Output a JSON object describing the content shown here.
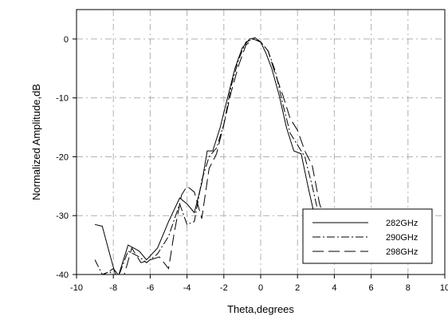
{
  "chart_data": {
    "type": "line",
    "title": "",
    "xlabel": "Theta,degrees",
    "ylabel": "Normalized Amplitude,dB",
    "xlim": [
      -10,
      10
    ],
    "ylim": [
      -40,
      5
    ],
    "xticks": [
      "-10",
      "-8",
      "-6",
      "-4",
      "-2",
      "0",
      "2",
      "4",
      "6",
      "8",
      "10"
    ],
    "yticks": [
      "0",
      "-10",
      "-20",
      "-30",
      "-40"
    ],
    "grid": true,
    "legend_position": "bottom-right",
    "series": [
      {
        "name": "282GHz",
        "dash": "solid",
        "color": "#000000",
        "x": [
          -9,
          -8.6,
          -8.2,
          -7.8,
          -7.2,
          -6.6,
          -6.2,
          -5.6,
          -5,
          -4.4,
          -4,
          -3.6,
          -3.2,
          -2.9,
          -2.6,
          -2.2,
          -1.8,
          -1.4,
          -1,
          -0.6,
          -0.3,
          0,
          0.3,
          0.6,
          1,
          1.4,
          1.8,
          2.2,
          2.6,
          3,
          3.4,
          3.8,
          4.2,
          4.6,
          5
        ],
        "y": [
          -31.5,
          -31.8,
          -36.5,
          -41,
          -35,
          -36,
          -37.5,
          -35.5,
          -31,
          -27,
          -28,
          -29.5,
          -24.5,
          -19,
          -19,
          -15,
          -10,
          -5,
          -1.5,
          0,
          0.2,
          -0.5,
          -2.5,
          -5,
          -9.5,
          -15,
          -19,
          -19.5,
          -25.5,
          -31,
          -33,
          -34.5,
          -35,
          -37,
          -37.5
        ]
      },
      {
        "name": "290GHz",
        "dash": "dashdot",
        "color": "#000000",
        "x": [
          -9,
          -8.6,
          -8.2,
          -7.8,
          -7.2,
          -6.6,
          -6.2,
          -5.6,
          -5,
          -4.4,
          -4,
          -3.6,
          -3.2,
          -2.8,
          -2.4,
          -2,
          -1.6,
          -1.2,
          -0.8,
          -0.4,
          0,
          0.4,
          0.8,
          1.2,
          1.6,
          2,
          2.4,
          2.8,
          3.2,
          3.6,
          4,
          4.4,
          4.8,
          5.2
        ],
        "y": [
          -37.5,
          -40,
          -39.5,
          -41,
          -36,
          -37,
          -38,
          -36.5,
          -33.5,
          -28,
          -31.5,
          -31,
          -24,
          -20,
          -18.5,
          -14.5,
          -8,
          -3.5,
          -0.5,
          0,
          -0.5,
          -2,
          -5.5,
          -11,
          -16,
          -18,
          -20,
          -25,
          -30.5,
          -32,
          -34,
          -35,
          -35.5,
          -36
        ]
      },
      {
        "name": "298GHz",
        "dash": "longdash",
        "color": "#000000",
        "x": [
          -9,
          -8.5,
          -8,
          -7.5,
          -7,
          -6.5,
          -6,
          -5.5,
          -5,
          -4.7,
          -4.3,
          -4,
          -3.6,
          -3.2,
          -2.8,
          -2.4,
          -2,
          -1.6,
          -1.2,
          -0.8,
          -0.4,
          0,
          0.4,
          0.8,
          1.2,
          1.6,
          2,
          2.4,
          2.8,
          3.2,
          3.6,
          4,
          4.4,
          4.8,
          5.2,
          5.8,
          6.5
        ],
        "y": [
          -40,
          -40,
          -39,
          -41,
          -35.5,
          -38,
          -37.5,
          -37,
          -39,
          -33,
          -26.5,
          -25,
          -26,
          -30.5,
          -22,
          -19.5,
          -14.5,
          -9,
          -4.5,
          -1,
          0,
          -0.5,
          -2,
          -6,
          -9.5,
          -13.5,
          -15.5,
          -19,
          -21.5,
          -28,
          -31.5,
          -32,
          -31,
          -33,
          -34,
          -35,
          -36
        ]
      }
    ]
  }
}
